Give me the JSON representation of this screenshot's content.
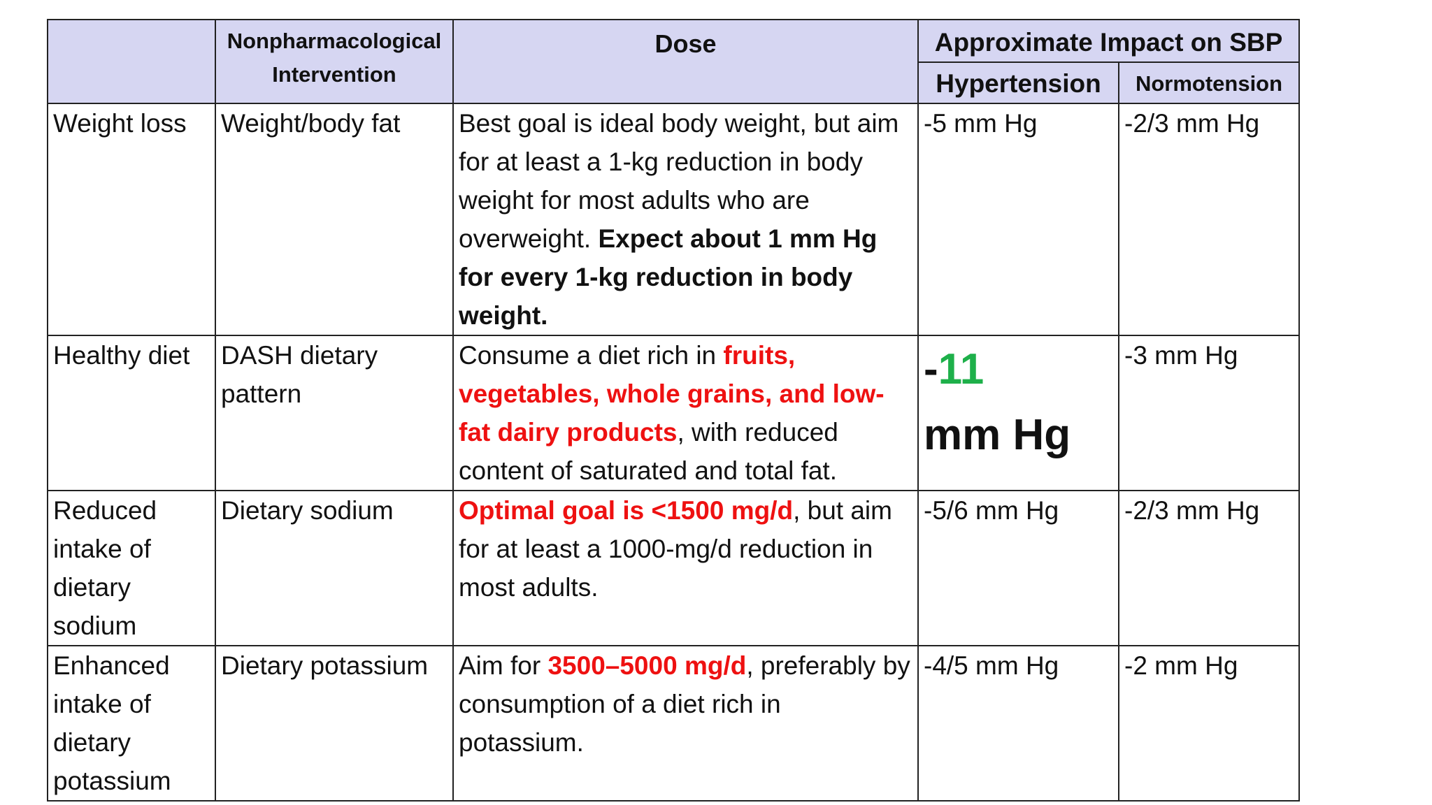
{
  "header": {
    "col_intervention": "Nonpharmacological Intervention",
    "col_dose": "Dose",
    "col_impact": "Approximate Impact on SBP",
    "col_hypertension": "Hypertension",
    "col_normotension": "Normotension"
  },
  "rows": [
    {
      "category": "Weight loss",
      "intervention": "Weight/body fat",
      "dose_plain": "Best goal is ideal body weight, but aim for at least a 1-kg reduction in body weight for most adults who are overweight. ",
      "dose_bold": "Expect about 1 mm Hg for every 1-kg reduction in body weight.",
      "hypertension": "-5 mm Hg",
      "normotension": "-2/3 mm Hg"
    },
    {
      "category": "Healthy diet",
      "intervention": "DASH dietary pattern",
      "dose_pre": "Consume a diet rich in ",
      "dose_red": "fruits, vegetables, whole grains, and low-fat dairy products",
      "dose_post": ", with reduced content of saturated and total fat.",
      "hypertension_sign": "-",
      "hypertension_value": "11",
      "hypertension_unit": "mm Hg",
      "normotension": "-3 mm Hg"
    },
    {
      "category": "Reduced intake of dietary sodium",
      "intervention": "Dietary sodium",
      "dose_red": "Optimal goal is <1500 mg/d",
      "dose_post": ", but aim for at least a 1000-mg/d reduction in most adults.",
      "hypertension": "-5/6 mm Hg",
      "normotension": "-2/3 mm Hg"
    },
    {
      "category": "Enhanced intake of dietary potassium",
      "intervention": "Dietary potassium",
      "dose_pre": "Aim for ",
      "dose_red": "3500–5000 mg/d",
      "dose_post": ", preferably by consumption of a diet rich in potassium.",
      "hypertension": "-4/5 mm Hg",
      "normotension": "-2 mm Hg"
    }
  ],
  "colors": {
    "header_bg": "#d6d6f2",
    "emphasis_red": "#ee1111",
    "emphasis_green": "#1eb04a"
  }
}
